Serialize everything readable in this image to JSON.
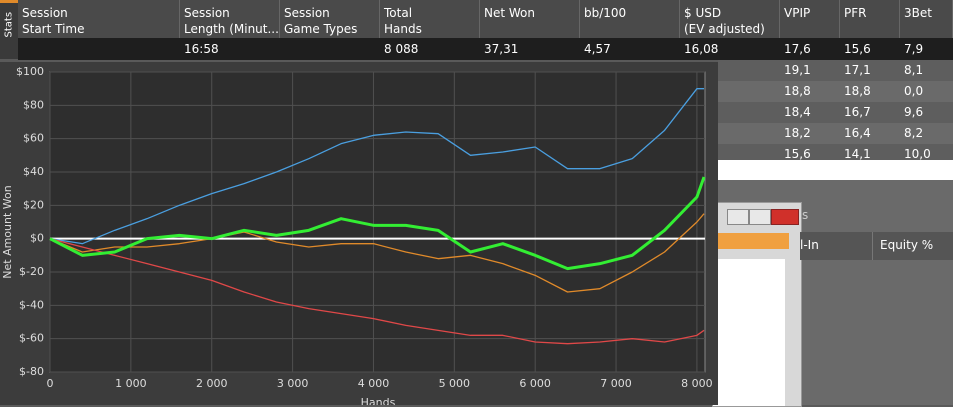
{
  "stats_tab": "Stats",
  "table": {
    "headers": [
      [
        "Session",
        "Start Time"
      ],
      [
        "Session",
        "Length (Minut..."
      ],
      [
        "Session",
        "Game Types"
      ],
      [
        "Total",
        "Hands"
      ],
      [
        "Net Won"
      ],
      [
        "bb/100"
      ],
      [
        "$ USD",
        "(EV adjusted)"
      ],
      [
        "VPIP"
      ],
      [
        "PFR"
      ],
      [
        "3Bet"
      ]
    ],
    "summary_row": [
      "",
      "16:58",
      "",
      "8 088",
      "37,31",
      "4,57",
      "16,08",
      "17,6",
      "15,6",
      "7,9"
    ],
    "rows": [
      [
        "19,1",
        "17,1",
        "8,1"
      ],
      [
        "18,8",
        "18,8",
        "0,0"
      ],
      [
        "18,4",
        "16,7",
        "9,6"
      ],
      [
        "18,2",
        "16,4",
        "8,2"
      ],
      [
        "15,6",
        "14,1",
        "10,0"
      ]
    ]
  },
  "back_window": {
    "tab": "s",
    "columns": [
      "l-In",
      "Equity %"
    ]
  },
  "chart_data": {
    "type": "line",
    "y_label": "Net Amount Won",
    "x_label": "Hands",
    "x": [
      0,
      400,
      800,
      1200,
      1600,
      2000,
      2400,
      2800,
      3200,
      3600,
      4000,
      4400,
      4800,
      5200,
      5600,
      6000,
      6400,
      6800,
      7200,
      7600,
      8000,
      8088
    ],
    "series": [
      {
        "color": "#4a9fe0",
        "width": 1.3,
        "values": [
          0,
          -3,
          5,
          12,
          20,
          27,
          33,
          40,
          48,
          57,
          62,
          64,
          63,
          50,
          52,
          55,
          42,
          42,
          48,
          65,
          90,
          90
        ]
      },
      {
        "color": "#e08a2a",
        "width": 1.3,
        "values": [
          0,
          -8,
          -5,
          -5,
          -3,
          0,
          4,
          -2,
          -5,
          -3,
          -3,
          -8,
          -12,
          -10,
          -15,
          -22,
          -32,
          -30,
          -20,
          -8,
          10,
          15
        ]
      },
      {
        "color": "#e04848",
        "width": 1.3,
        "values": [
          0,
          -5,
          -10,
          -15,
          -20,
          -25,
          -32,
          -38,
          -42,
          -45,
          -48,
          -52,
          -55,
          -58,
          -58,
          -62,
          -63,
          -62,
          -60,
          -62,
          -58,
          -55
        ]
      },
      {
        "color": "#33ee33",
        "width": 3,
        "values": [
          0,
          -10,
          -8,
          0,
          2,
          0,
          5,
          2,
          5,
          12,
          8,
          8,
          5,
          -8,
          -3,
          -10,
          -18,
          -15,
          -10,
          5,
          25,
          37
        ]
      }
    ],
    "xlim": [
      0,
      8100
    ],
    "ylim": [
      -80,
      100
    ],
    "xticks": [
      0,
      {
        "value": 1000,
        "label": "1 000"
      },
      {
        "value": 2000,
        "label": "2 000"
      },
      {
        "value": 3000,
        "label": "3 000"
      },
      {
        "value": 4000,
        "label": "4 000"
      },
      {
        "value": 5000,
        "label": "5 000"
      },
      {
        "value": 6000,
        "label": "6 000"
      },
      {
        "value": 7000,
        "label": "7 000"
      },
      {
        "value": 8000,
        "label": "8 000"
      }
    ],
    "yticks": [
      {
        "value": -80,
        "label": "$-80"
      },
      {
        "value": -60,
        "label": "$-60"
      },
      {
        "value": -40,
        "label": "$-40"
      },
      {
        "value": -20,
        "label": "$-20"
      },
      {
        "value": 0,
        "label": "$0"
      },
      {
        "value": 20,
        "label": "$20"
      },
      {
        "value": 40,
        "label": "$40"
      },
      {
        "value": 60,
        "label": "$60"
      },
      {
        "value": 80,
        "label": "$80"
      },
      {
        "value": 100,
        "label": "$100"
      }
    ],
    "grid": true
  }
}
